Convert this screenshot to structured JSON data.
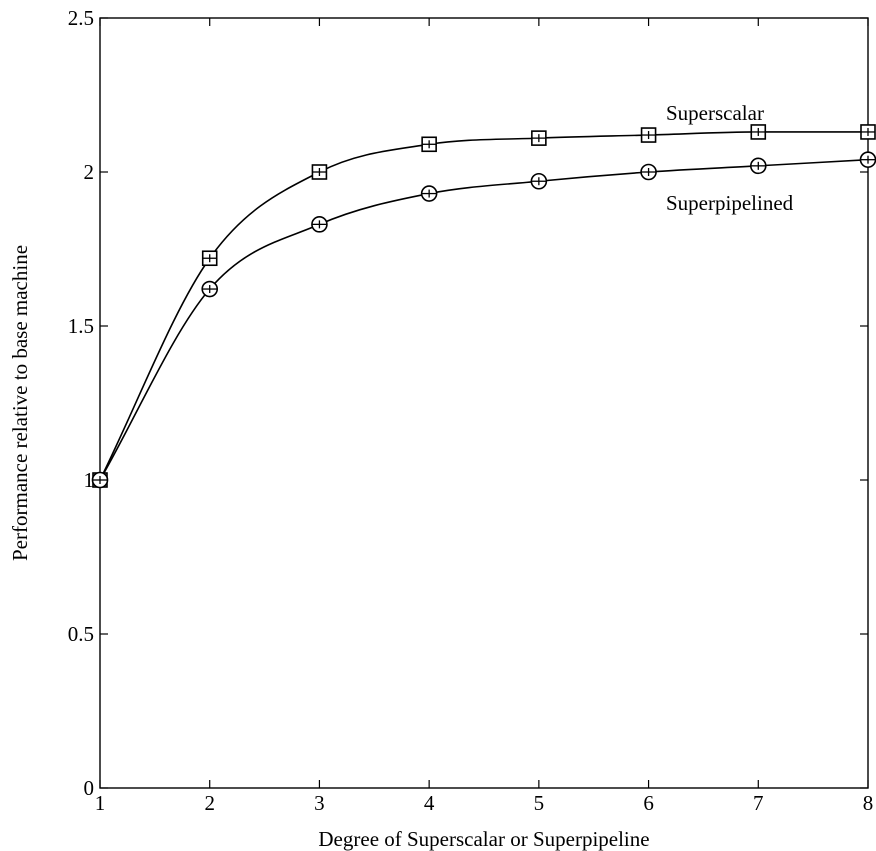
{
  "chart_data": {
    "type": "line",
    "xlabel": "Degree of Superscalar or Superpipeline",
    "ylabel": "Performance relative to base machine",
    "xlim": [
      1,
      8
    ],
    "ylim": [
      0,
      2.5
    ],
    "x_ticks": [
      "1",
      "2",
      "3",
      "4",
      "5",
      "6",
      "7",
      "8"
    ],
    "y_ticks": [
      "0",
      "0.5",
      "1",
      "1.5",
      "2",
      "2.5"
    ],
    "grid": false,
    "legend": "inline labels near curves",
    "x": [
      1,
      2,
      3,
      4,
      5,
      6,
      7,
      8
    ],
    "series": [
      {
        "name": "Superscalar",
        "marker": "square",
        "values": [
          1.0,
          1.72,
          2.0,
          2.09,
          2.11,
          2.12,
          2.13,
          2.13
        ]
      },
      {
        "name": "Superpipelined",
        "marker": "circle",
        "values": [
          1.0,
          1.62,
          1.83,
          1.93,
          1.97,
          2.0,
          2.02,
          2.04
        ]
      }
    ]
  }
}
